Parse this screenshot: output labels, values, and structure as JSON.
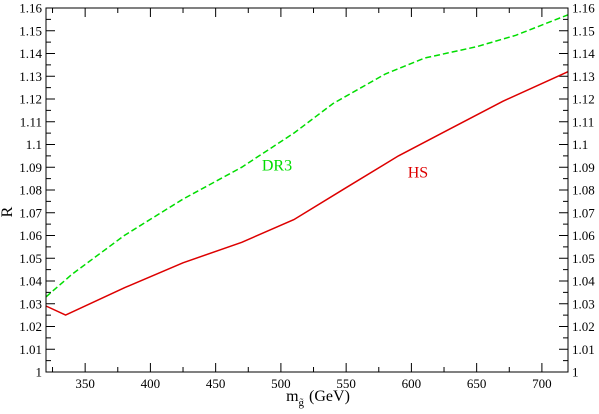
{
  "chart_data": {
    "type": "line",
    "ylabel": "R",
    "xlabel": "(GeV)",
    "xlabel_symbol": "m",
    "xlabel_subscript": "g̃",
    "xlim": [
      320,
      720
    ],
    "ylim": [
      1.0,
      1.16
    ],
    "x_ticks": [
      350,
      400,
      450,
      500,
      550,
      600,
      650,
      700
    ],
    "y_ticks": [
      1.0,
      1.01,
      1.02,
      1.03,
      1.04,
      1.05,
      1.06,
      1.07,
      1.08,
      1.09,
      1.1,
      1.11,
      1.12,
      1.13,
      1.14,
      1.15,
      1.16
    ],
    "y_tick_labels": [
      "1",
      "1.01",
      "1.02",
      "1.03",
      "1.04",
      "1.05",
      "1.06",
      "1.07",
      "1.08",
      "1.09",
      "1.1",
      "1.11",
      "1.12",
      "1.13",
      "1.14",
      "1.15",
      "1.16"
    ],
    "grid": false,
    "series": [
      {
        "name": "DR3",
        "color": "#00dd00",
        "dash": "dashed",
        "label_at": [
          497,
          1.0885
        ],
        "x": [
          320,
          340,
          380,
          425,
          470,
          510,
          540,
          580,
          610,
          650,
          680,
          720
        ],
        "y": [
          1.033,
          1.043,
          1.06,
          1.076,
          1.09,
          1.105,
          1.118,
          1.131,
          1.138,
          1.143,
          1.148,
          1.157
        ]
      },
      {
        "name": "HS",
        "color": "#dd0000",
        "dash": "solid",
        "label_at": [
          605,
          1.0855
        ],
        "x": [
          320,
          335,
          380,
          425,
          470,
          510,
          550,
          590,
          630,
          670,
          720
        ],
        "y": [
          1.029,
          1.025,
          1.037,
          1.048,
          1.057,
          1.067,
          1.081,
          1.095,
          1.107,
          1.119,
          1.132
        ]
      }
    ]
  }
}
